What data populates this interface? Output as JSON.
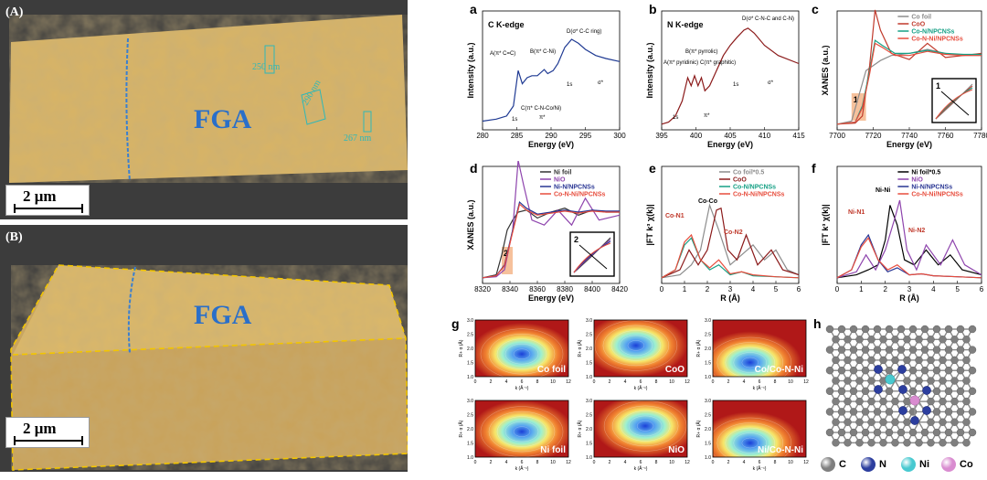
{
  "tomography": {
    "panel_a": {
      "label": "(A)",
      "title": "FGA",
      "scale": "2 μm",
      "measurements": [
        "250 nm",
        "290 nm",
        "267 nm"
      ]
    },
    "panel_b": {
      "label": "(B)",
      "title": "FGA",
      "scale": "2 μm"
    }
  },
  "colors": {
    "gel": "#d9b464",
    "gel_dark": "#b8924a",
    "background": "#3c3c3c",
    "dashed": "#f2c500"
  },
  "chart_data": [
    {
      "id": "a",
      "type": "line",
      "title": "C K-edge",
      "xlabel": "Energy (eV)",
      "ylabel": "Intensity (a.u.)",
      "xlim": [
        280,
        300
      ],
      "xticks": [
        "280",
        "285",
        "290",
        "295",
        "300"
      ],
      "series": [
        {
          "color": "#1f3a93",
          "x": [
            280,
            282,
            283.5,
            284.5,
            285.2,
            285.8,
            286.5,
            287.2,
            288,
            289,
            289.5,
            290.3,
            291,
            292,
            293,
            294,
            295,
            296.5,
            298,
            300
          ],
          "y": [
            0.05,
            0.07,
            0.1,
            0.2,
            0.55,
            0.42,
            0.48,
            0.5,
            0.5,
            0.56,
            0.52,
            0.55,
            0.62,
            0.78,
            0.86,
            0.82,
            0.76,
            0.7,
            0.67,
            0.64
          ]
        }
      ],
      "annotations": [
        "A(π* C=C)",
        "B(π* C-Ni)",
        "C(π* C-N-Co/Ni)",
        "D(σ* C-C ring)",
        "1s",
        "π*",
        "1s",
        "σ*"
      ]
    },
    {
      "id": "b",
      "type": "line",
      "title": "N K-edge",
      "xlabel": "Energy (eV)",
      "ylabel": "Intensity (a.u.)",
      "xlim": [
        395,
        415
      ],
      "xticks": [
        "395",
        "400",
        "405",
        "410",
        "415"
      ],
      "series": [
        {
          "color": "#8b1a1a",
          "x": [
            395,
            396,
            397,
            398,
            398.8,
            399.3,
            399.8,
            400.3,
            400.8,
            401.3,
            402,
            403,
            404,
            405,
            406,
            407,
            407.6,
            408.5,
            410,
            412,
            415
          ],
          "y": [
            0.02,
            0.04,
            0.1,
            0.25,
            0.48,
            0.4,
            0.5,
            0.4,
            0.48,
            0.35,
            0.4,
            0.55,
            0.7,
            0.8,
            0.88,
            0.95,
            0.97,
            0.92,
            0.8,
            0.7,
            0.62
          ]
        }
      ],
      "annotations": [
        "A(π* pyridinic)",
        "B(π* pyrrolic)",
        "C(π* graphitic)",
        "D(σ* C-N-C and C-N)",
        "1s",
        "π*",
        "1s",
        "σ*"
      ]
    },
    {
      "id": "c",
      "type": "line",
      "xlabel": "Energy (eV)",
      "ylabel": "XANES (a.u.)",
      "xlim": [
        7700,
        7780
      ],
      "xticks": [
        "7700",
        "7720",
        "7740",
        "7760",
        "7780"
      ],
      "inset_label": "1",
      "highlight_label": "1",
      "series": [
        {
          "name": "Co foil",
          "color": "#8c8c8c",
          "x": [
            7700,
            7708,
            7712,
            7716,
            7720,
            7724,
            7730,
            7740,
            7750,
            7760,
            7770,
            7780
          ],
          "y": [
            0.02,
            0.05,
            0.3,
            0.55,
            0.6,
            0.65,
            0.7,
            0.72,
            0.76,
            0.72,
            0.7,
            0.7
          ]
        },
        {
          "name": "CoO",
          "color": "#c0392b",
          "x": [
            7700,
            7710,
            7714,
            7718,
            7721,
            7724,
            7730,
            7740,
            7750,
            7760,
            7770,
            7780
          ],
          "y": [
            0.02,
            0.03,
            0.1,
            0.6,
            1.15,
            0.95,
            0.72,
            0.66,
            0.82,
            0.68,
            0.7,
            0.72
          ]
        },
        {
          "name": "Co-N/NPCNSs",
          "color": "#16a085",
          "x": [
            7700,
            7710,
            7714,
            7718,
            7721,
            7725,
            7732,
            7740,
            7750,
            7760,
            7770,
            7780
          ],
          "y": [
            0.02,
            0.04,
            0.2,
            0.55,
            0.85,
            0.8,
            0.72,
            0.72,
            0.75,
            0.72,
            0.71,
            0.71
          ]
        },
        {
          "name": "Co-N-Ni/NPCNSs",
          "color": "#e74c3c",
          "x": [
            7700,
            7710,
            7714,
            7718,
            7721,
            7725,
            7732,
            7740,
            7750,
            7760,
            7770,
            7780
          ],
          "y": [
            0.02,
            0.04,
            0.18,
            0.52,
            0.82,
            0.78,
            0.7,
            0.7,
            0.74,
            0.71,
            0.7,
            0.7
          ]
        }
      ]
    },
    {
      "id": "d",
      "type": "line",
      "xlabel": "Energy (eV)",
      "ylabel": "XANES (a.u.)",
      "xlim": [
        8320,
        8420
      ],
      "xticks": [
        "8320",
        "8340",
        "8360",
        "8380",
        "8400",
        "8420"
      ],
      "inset_label": "2",
      "highlight_label": "2",
      "series": [
        {
          "name": "Ni foil",
          "color": "#333333",
          "x": [
            8320,
            8330,
            8334,
            8338,
            8342,
            8346,
            8352,
            8360,
            8370,
            8380,
            8390,
            8400,
            8410,
            8420
          ],
          "y": [
            0.02,
            0.05,
            0.25,
            0.5,
            0.6,
            0.68,
            0.7,
            0.62,
            0.68,
            0.72,
            0.65,
            0.7,
            0.68,
            0.68
          ]
        },
        {
          "name": "NiO",
          "color": "#8e44ad",
          "x": [
            8320,
            8330,
            8336,
            8342,
            8346,
            8350,
            8356,
            8365,
            8375,
            8385,
            8395,
            8405,
            8420
          ],
          "y": [
            0.02,
            0.03,
            0.1,
            0.5,
            1.2,
            0.95,
            0.6,
            0.55,
            0.7,
            0.55,
            0.82,
            0.6,
            0.65
          ]
        },
        {
          "name": "Ni-N/NPCNSs",
          "color": "#283593",
          "x": [
            8320,
            8330,
            8336,
            8342,
            8347,
            8352,
            8360,
            8370,
            8380,
            8390,
            8400,
            8410,
            8420
          ],
          "y": [
            0.02,
            0.04,
            0.15,
            0.5,
            0.78,
            0.72,
            0.66,
            0.68,
            0.7,
            0.68,
            0.7,
            0.69,
            0.69
          ]
        },
        {
          "name": "Co-N-Ni/NPCNSs",
          "color": "#e74c3c",
          "x": [
            8320,
            8330,
            8336,
            8342,
            8347,
            8352,
            8360,
            8370,
            8380,
            8390,
            8400,
            8410,
            8420
          ],
          "y": [
            0.02,
            0.04,
            0.14,
            0.48,
            0.76,
            0.7,
            0.65,
            0.67,
            0.69,
            0.67,
            0.69,
            0.68,
            0.68
          ]
        }
      ]
    },
    {
      "id": "e",
      "type": "line",
      "xlabel": "R (Å)",
      "ylabel": "|FT k³ χ(k)|",
      "xlim": [
        0,
        6
      ],
      "xticks": [
        "0",
        "1",
        "2",
        "3",
        "4",
        "5",
        "6"
      ],
      "annotations": [
        "Co-Co",
        "Co-N1",
        "Co-N2"
      ],
      "series": [
        {
          "name": "Co foil*0.5",
          "color": "#8c8c8c",
          "x": [
            0,
            0.8,
            1.3,
            1.7,
            2.1,
            2.5,
            3.0,
            3.5,
            4.0,
            4.5,
            5.0,
            5.5,
            6
          ],
          "y": [
            0.02,
            0.05,
            0.15,
            0.3,
            0.75,
            0.5,
            0.15,
            0.25,
            0.35,
            0.2,
            0.3,
            0.1,
            0.05
          ]
        },
        {
          "name": "CoO",
          "color": "#8b1a1a",
          "x": [
            0,
            0.8,
            1.2,
            1.6,
            2.0,
            2.4,
            2.6,
            2.9,
            3.3,
            3.7,
            4.2,
            4.8,
            5.3,
            6
          ],
          "y": [
            0.02,
            0.1,
            0.3,
            0.15,
            0.3,
            0.7,
            0.72,
            0.3,
            0.2,
            0.45,
            0.15,
            0.3,
            0.1,
            0.05
          ]
        },
        {
          "name": "Co-N/NPCNSs",
          "color": "#16a085",
          "x": [
            0,
            0.6,
            1.0,
            1.3,
            1.7,
            2.1,
            2.5,
            3.0,
            3.5,
            4.0,
            5.0,
            6
          ],
          "y": [
            0.02,
            0.1,
            0.35,
            0.42,
            0.2,
            0.1,
            0.15,
            0.05,
            0.08,
            0.04,
            0.03,
            0.02
          ]
        },
        {
          "name": "Co-N-Ni/NPCNSs",
          "color": "#e74c3c",
          "x": [
            0,
            0.6,
            1.0,
            1.3,
            1.7,
            2.1,
            2.5,
            3.0,
            3.5,
            4.0,
            5.0,
            6
          ],
          "y": [
            0.02,
            0.1,
            0.38,
            0.45,
            0.2,
            0.12,
            0.2,
            0.06,
            0.08,
            0.05,
            0.03,
            0.02
          ]
        }
      ]
    },
    {
      "id": "f",
      "type": "line",
      "xlabel": "R (Å)",
      "ylabel": "|FT k³ χ(k)|",
      "xlim": [
        0,
        6
      ],
      "xticks": [
        "0",
        "1",
        "2",
        "3",
        "4",
        "5",
        "6"
      ],
      "annotations": [
        "Ni-Ni",
        "Ni-N1",
        "Ni-N2"
      ],
      "series": [
        {
          "name": "Ni foil*0.5",
          "color": "#000000",
          "x": [
            0,
            0.8,
            1.3,
            1.7,
            2.0,
            2.2,
            2.5,
            2.8,
            3.2,
            3.7,
            4.2,
            4.7,
            5.2,
            6
          ],
          "y": [
            0.02,
            0.05,
            0.1,
            0.15,
            0.4,
            0.75,
            0.55,
            0.2,
            0.15,
            0.3,
            0.15,
            0.25,
            0.1,
            0.05
          ]
        },
        {
          "name": "NiO",
          "color": "#8e44ad",
          "x": [
            0,
            0.8,
            1.2,
            1.6,
            2.0,
            2.4,
            2.6,
            2.9,
            3.3,
            3.7,
            4.3,
            4.8,
            5.3,
            6
          ],
          "y": [
            0.02,
            0.08,
            0.25,
            0.1,
            0.3,
            0.62,
            0.8,
            0.3,
            0.1,
            0.35,
            0.15,
            0.4,
            0.15,
            0.05
          ]
        },
        {
          "name": "Ni-N/NPCNSs",
          "color": "#283593",
          "x": [
            0,
            0.6,
            1.0,
            1.3,
            1.7,
            2.1,
            2.5,
            3.0,
            3.5,
            4.0,
            5.0,
            6
          ],
          "y": [
            0.02,
            0.1,
            0.35,
            0.45,
            0.2,
            0.08,
            0.12,
            0.05,
            0.06,
            0.04,
            0.03,
            0.02
          ]
        },
        {
          "name": "Co-N-Ni/NPCNSs",
          "color": "#e74c3c",
          "x": [
            0,
            0.6,
            1.0,
            1.3,
            1.7,
            2.1,
            2.5,
            3.0,
            3.5,
            4.0,
            5.0,
            6
          ],
          "y": [
            0.02,
            0.1,
            0.33,
            0.42,
            0.2,
            0.1,
            0.15,
            0.05,
            0.06,
            0.04,
            0.03,
            0.02
          ]
        }
      ]
    }
  ],
  "wavelet": {
    "label": "g",
    "xlabel": "k (Å⁻¹)",
    "ylabel": "R+ α (Å)",
    "xticks": [
      "0",
      "2",
      "4",
      "6",
      "8",
      "10",
      "12"
    ],
    "yticks": [
      "1.0",
      "1.5",
      "2.0",
      "2.5",
      "3.0"
    ],
    "panels": [
      {
        "name": "Co foil",
        "hot": [
          0.5,
          0.6
        ]
      },
      {
        "name": "CoO",
        "hot": [
          0.45,
          0.45
        ]
      },
      {
        "name": "Co/Co-N-Ni",
        "hot": [
          0.4,
          0.75
        ]
      },
      {
        "name": "Ni foil",
        "hot": [
          0.5,
          0.55
        ]
      },
      {
        "name": "NiO",
        "hot": [
          0.55,
          0.45
        ]
      },
      {
        "name": "Ni/Co-N-Ni",
        "hot": [
          0.4,
          0.75
        ]
      }
    ]
  },
  "structure": {
    "label": "h",
    "legend": [
      {
        "symbol": "C",
        "color": "#7f7f7f"
      },
      {
        "symbol": "N",
        "color": "#2c3e9e"
      },
      {
        "symbol": "Ni",
        "color": "#48c9d0"
      },
      {
        "symbol": "Co",
        "color": "#d98cd0"
      }
    ]
  }
}
